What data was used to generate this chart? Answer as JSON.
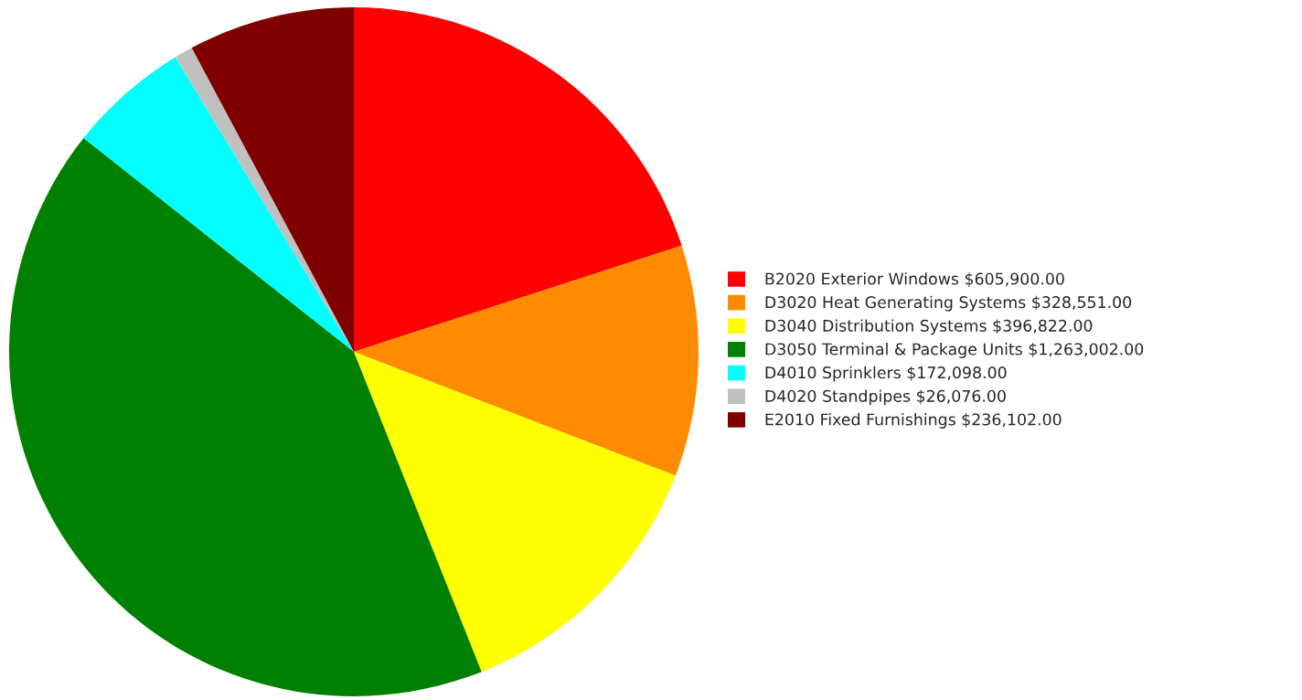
{
  "chart_data": {
    "type": "pie",
    "categories": [
      "B2020 Exterior Windows",
      "D3020 Heat Generating Systems",
      "D3040 Distribution Systems",
      "D3050 Terminal & Package Units",
      "D4010 Sprinklers",
      "D4020 Standpipes",
      "E2010 Fixed Furnishings"
    ],
    "values": [
      605900,
      328551,
      396822,
      1263002,
      172098,
      26076,
      236102
    ],
    "value_labels": [
      "$605,900.00",
      "$328,551.00",
      "$396,822.00",
      "$1,263,002.00",
      "$172,098.00",
      "$26,076.00",
      "$236,102.00"
    ],
    "colors": [
      "#ff0000",
      "#ff8c00",
      "#ffff00",
      "#008000",
      "#00ffff",
      "#c0c0c0",
      "#800000"
    ],
    "legend": "right"
  }
}
